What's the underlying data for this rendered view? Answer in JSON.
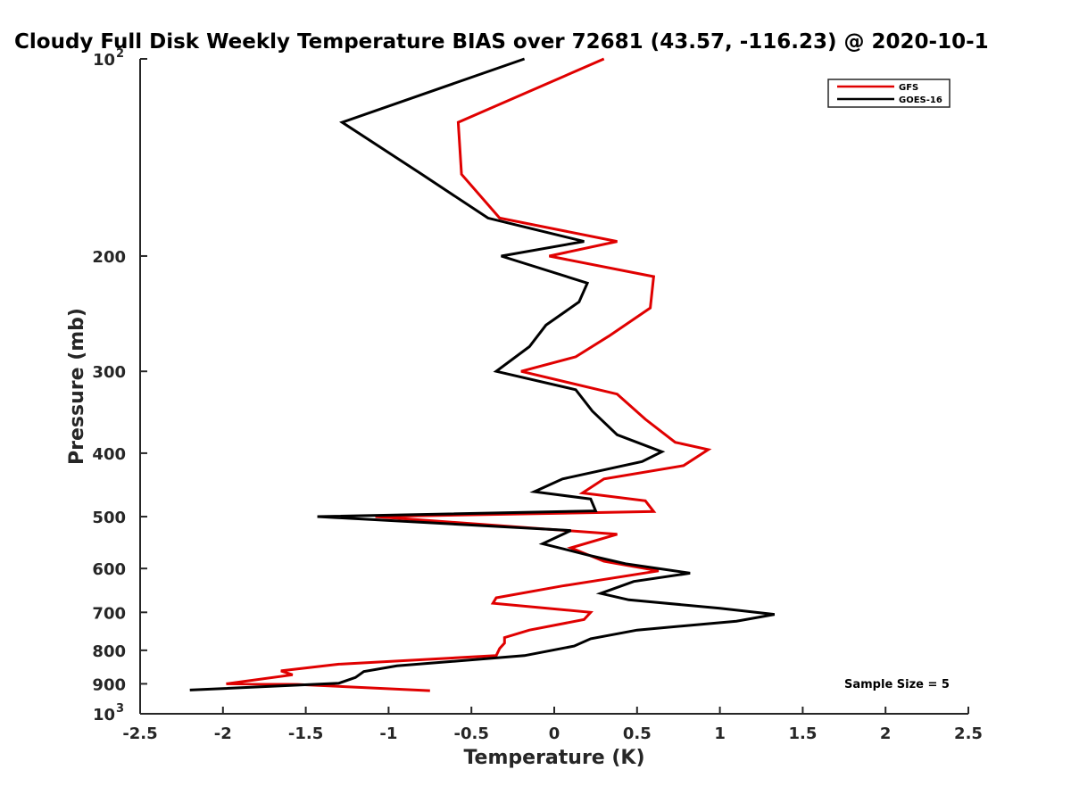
{
  "chart_data": {
    "type": "line",
    "title": "Cloudy Full Disk Weekly Temperature BIAS over 72681 (43.57, -116.23) @ 2020-10-1",
    "xlabel": "Temperature (K)",
    "ylabel": "Pressure (mb)",
    "xlim": [
      -2.5,
      2.5
    ],
    "ylim": [
      100,
      1000
    ],
    "y_scale": "log",
    "y_reversed": true,
    "grid": false,
    "legend_position": "top-right",
    "x_ticks": [
      {
        "value": -2.5,
        "label": "-2.5"
      },
      {
        "value": -2,
        "label": "-2"
      },
      {
        "value": -1.5,
        "label": "-1.5"
      },
      {
        "value": -1,
        "label": "-1"
      },
      {
        "value": -0.5,
        "label": "-0.5"
      },
      {
        "value": 0,
        "label": "0"
      },
      {
        "value": 0.5,
        "label": "0.5"
      },
      {
        "value": 1,
        "label": "1"
      },
      {
        "value": 1.5,
        "label": "1.5"
      },
      {
        "value": 2,
        "label": "2"
      },
      {
        "value": 2.5,
        "label": "2.5"
      }
    ],
    "y_ticks": [
      {
        "value": 100,
        "label": "10",
        "sup": "2"
      },
      {
        "value": 200,
        "label": "200",
        "sup": ""
      },
      {
        "value": 300,
        "label": "300",
        "sup": ""
      },
      {
        "value": 400,
        "label": "400",
        "sup": ""
      },
      {
        "value": 500,
        "label": "500",
        "sup": ""
      },
      {
        "value": 600,
        "label": "600",
        "sup": ""
      },
      {
        "value": 700,
        "label": "700",
        "sup": ""
      },
      {
        "value": 800,
        "label": "800",
        "sup": ""
      },
      {
        "value": 900,
        "label": "900",
        "sup": ""
      },
      {
        "value": 1000,
        "label": "10",
        "sup": "3"
      }
    ],
    "series": [
      {
        "name": "GFS",
        "color": "#e00000",
        "points": [
          [
            0.3,
            100
          ],
          [
            -0.58,
            125
          ],
          [
            -0.56,
            150
          ],
          [
            -0.33,
            175
          ],
          [
            0.38,
            190
          ],
          [
            -0.03,
            200
          ],
          [
            0.6,
            215
          ],
          [
            0.58,
            240
          ],
          [
            0.33,
            265
          ],
          [
            0.13,
            285
          ],
          [
            -0.2,
            300
          ],
          [
            0.38,
            325
          ],
          [
            0.55,
            355
          ],
          [
            0.73,
            385
          ],
          [
            0.93,
            395
          ],
          [
            0.78,
            418
          ],
          [
            0.3,
            438
          ],
          [
            0.17,
            460
          ],
          [
            0.55,
            473
          ],
          [
            0.6,
            491
          ],
          [
            -1.08,
            500
          ],
          [
            0.38,
            532
          ],
          [
            0.1,
            558
          ],
          [
            0.3,
            585
          ],
          [
            0.63,
            605
          ],
          [
            0.05,
            638
          ],
          [
            -0.35,
            665
          ],
          [
            -0.37,
            678
          ],
          [
            0.22,
            700
          ],
          [
            0.18,
            718
          ],
          [
            -0.15,
            745
          ],
          [
            -0.3,
            765
          ],
          [
            -0.3,
            780
          ],
          [
            -0.33,
            795
          ],
          [
            -0.35,
            815
          ],
          [
            -1.3,
            840
          ],
          [
            -1.65,
            860
          ],
          [
            -1.58,
            872
          ],
          [
            -1.98,
            900
          ],
          [
            -1.55,
            902
          ],
          [
            -0.75,
            922
          ]
        ]
      },
      {
        "name": "GOES-16",
        "color": "#000000",
        "points": [
          [
            -0.18,
            100
          ],
          [
            -1.28,
            125
          ],
          [
            -0.8,
            150
          ],
          [
            -0.4,
            175
          ],
          [
            0.18,
            190
          ],
          [
            -0.32,
            200
          ],
          [
            0.2,
            220
          ],
          [
            0.15,
            235
          ],
          [
            -0.05,
            255
          ],
          [
            -0.15,
            275
          ],
          [
            -0.35,
            300
          ],
          [
            0.13,
            320
          ],
          [
            0.23,
            345
          ],
          [
            0.38,
            375
          ],
          [
            0.65,
            398
          ],
          [
            0.53,
            412
          ],
          [
            0.05,
            438
          ],
          [
            -0.12,
            458
          ],
          [
            0.22,
            470
          ],
          [
            0.25,
            490
          ],
          [
            -1.43,
            500
          ],
          [
            0.1,
            525
          ],
          [
            -0.07,
            550
          ],
          [
            0.2,
            572
          ],
          [
            0.43,
            590
          ],
          [
            0.82,
            610
          ],
          [
            0.48,
            628
          ],
          [
            0.28,
            655
          ],
          [
            0.45,
            670
          ],
          [
            1.0,
            690
          ],
          [
            1.33,
            705
          ],
          [
            1.1,
            722
          ],
          [
            0.5,
            745
          ],
          [
            0.22,
            768
          ],
          [
            0.12,
            788
          ],
          [
            -0.18,
            815
          ],
          [
            -0.95,
            845
          ],
          [
            -1.15,
            862
          ],
          [
            -1.2,
            880
          ],
          [
            -1.3,
            898
          ],
          [
            -2.2,
            920
          ]
        ]
      }
    ],
    "annotation": "Sample Size = 5"
  }
}
